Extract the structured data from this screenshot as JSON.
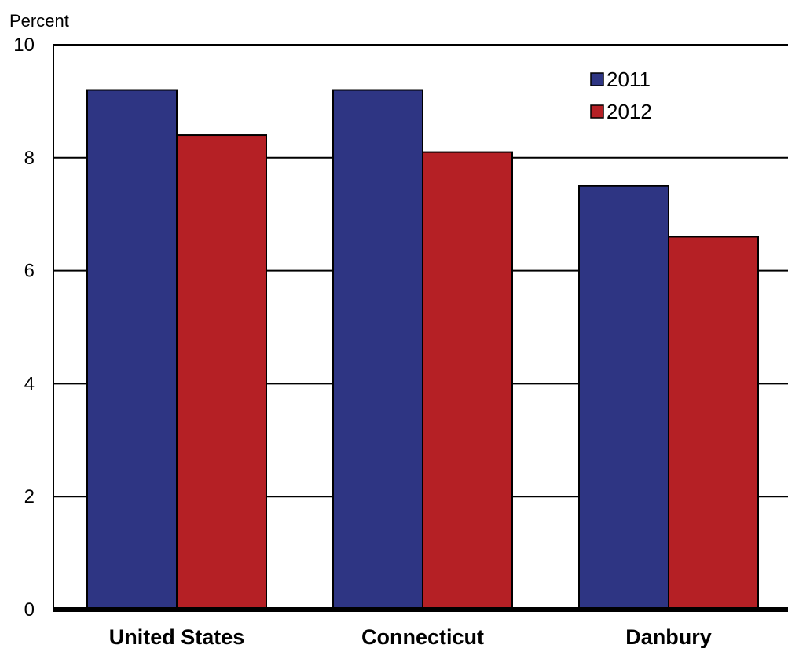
{
  "chart_data": {
    "type": "bar",
    "title": "",
    "ylabel": "Percent",
    "xlabel": "",
    "ylim": [
      0,
      10
    ],
    "yticks": [
      0,
      2,
      4,
      6,
      8,
      10
    ],
    "ytick_labels": [
      "0",
      "2",
      "4",
      "6",
      "8",
      "10"
    ],
    "grid": true,
    "legend_position": "top-right",
    "categories": [
      "United States",
      "Connecticut",
      "Danbury"
    ],
    "series": [
      {
        "name": "2011",
        "color": "#2e3583",
        "values": [
          9.2,
          9.2,
          7.5
        ]
      },
      {
        "name": "2012",
        "color": "#b52025",
        "values": [
          8.4,
          8.1,
          6.6
        ]
      }
    ]
  }
}
